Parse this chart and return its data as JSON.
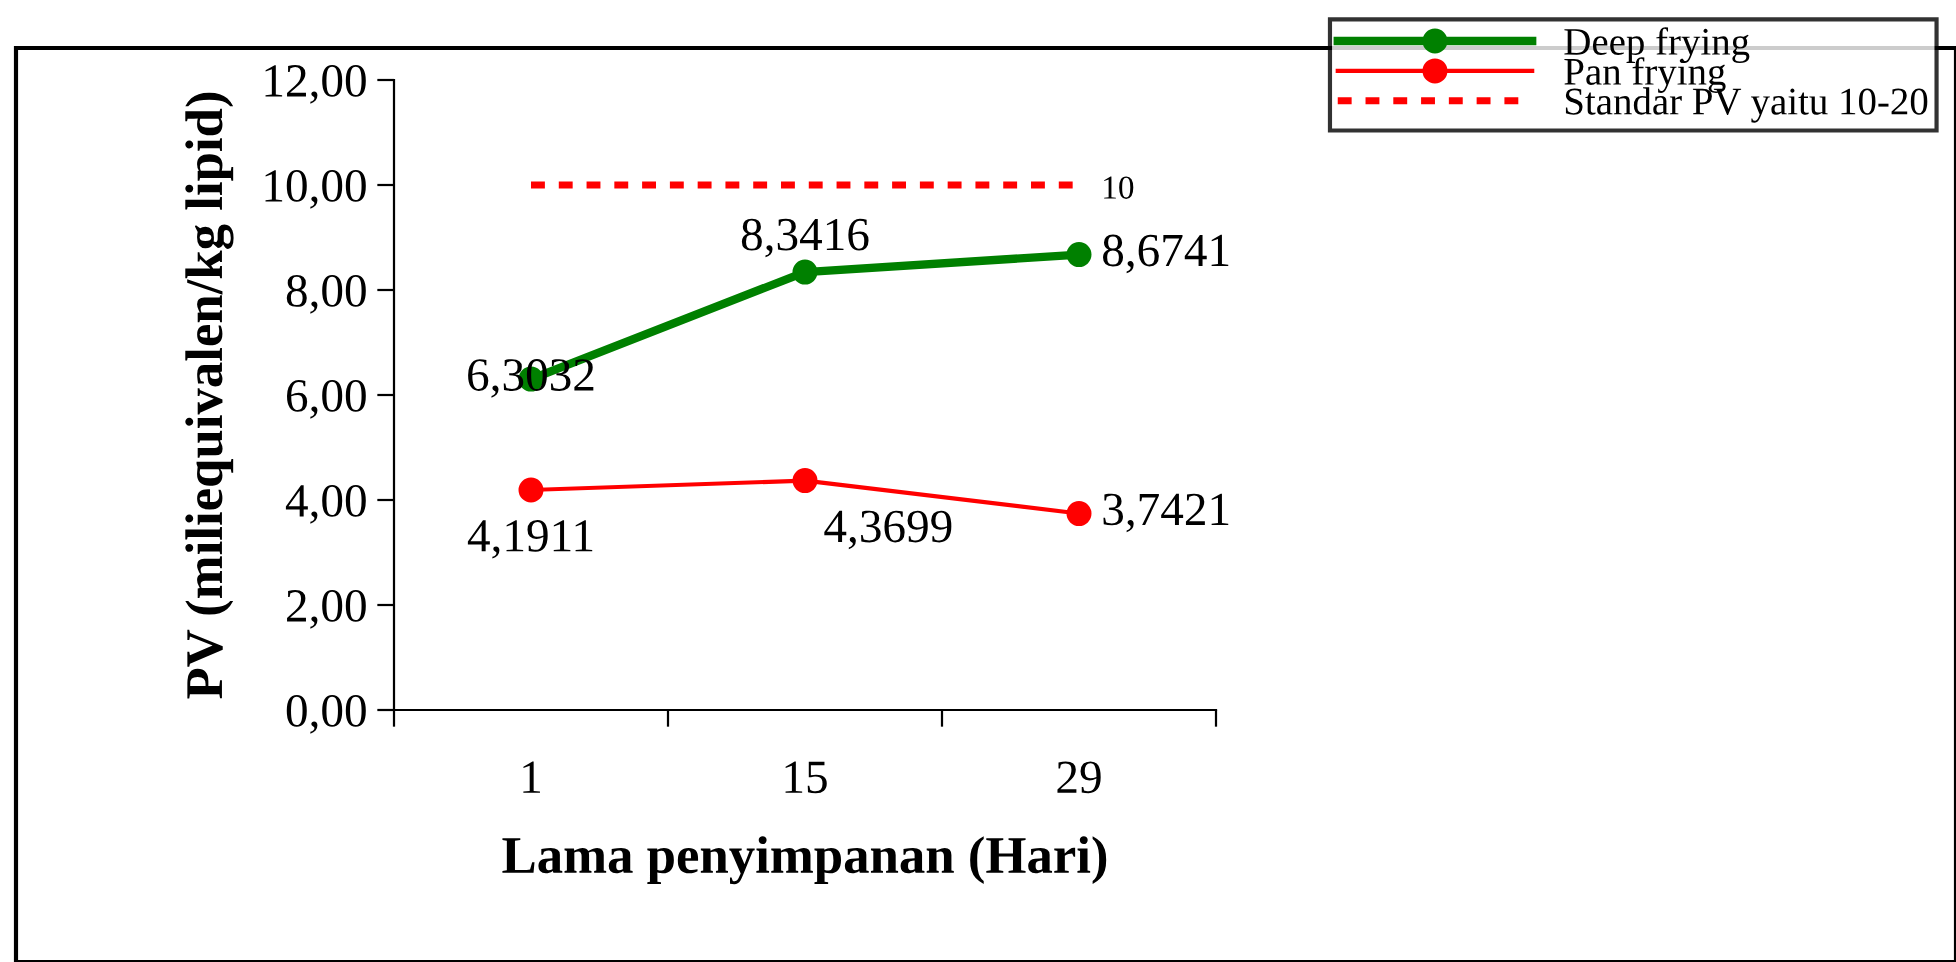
{
  "chart_data": {
    "type": "line",
    "xlabel": "Lama penyimpanan (Hari)",
    "ylabel": "PV (miliequivalen/kg lipid)",
    "categories": [
      "1",
      "15",
      "29"
    ],
    "series": [
      {
        "name": "Deep frying",
        "color": "#008000",
        "values": [
          6.3032,
          8.3416,
          8.6741
        ],
        "value_labels": [
          "6,3032",
          "8,3416",
          "8,6741"
        ],
        "marker": "circle",
        "line_style": "solid"
      },
      {
        "name": "Pan frying",
        "color": "#ff0000",
        "values": [
          4.1911,
          4.3699,
          3.7421
        ],
        "value_labels": [
          "4,1911",
          "4,3699",
          "3,7421"
        ],
        "marker": "circle",
        "line_style": "solid"
      },
      {
        "name": "Standar PV yaitu 10-20",
        "color": "#ff0000",
        "values": [
          10,
          10,
          10
        ],
        "value_labels": [
          null,
          null,
          "10"
        ],
        "marker": "none",
        "line_style": "dotted"
      }
    ],
    "ylim": [
      0,
      12
    ],
    "yticks": [
      {
        "value": 0,
        "label": "0,00"
      },
      {
        "value": 2,
        "label": "2,00"
      },
      {
        "value": 4,
        "label": "4,00"
      },
      {
        "value": 6,
        "label": "6,00"
      },
      {
        "value": 8,
        "label": "8,00"
      },
      {
        "value": 10,
        "label": "10,00"
      },
      {
        "value": 12,
        "label": "12,00"
      }
    ],
    "grid": false,
    "legend": "top right"
  }
}
